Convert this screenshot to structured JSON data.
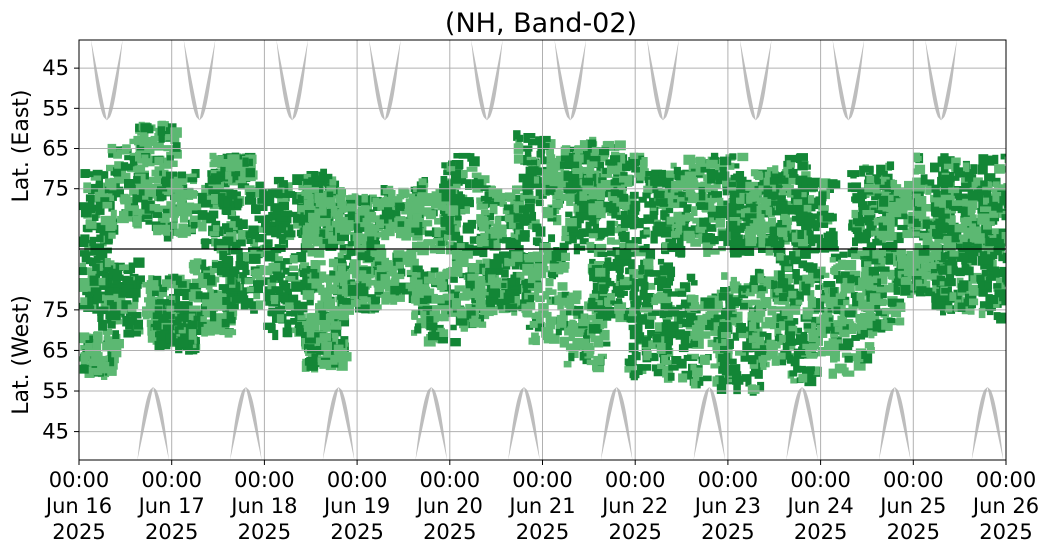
{
  "chart_data": {
    "type": "heatmap",
    "title": "(NH, Band-02)",
    "ylabel_top": "Lat. (East)",
    "ylabel_bottom": "Lat. (West)",
    "grid": true,
    "x_ticks": [
      {
        "time": "00:00",
        "date": "Jun 16",
        "year": "2025"
      },
      {
        "time": "00:00",
        "date": "Jun 17",
        "year": "2025"
      },
      {
        "time": "00:00",
        "date": "Jun 18",
        "year": "2025"
      },
      {
        "time": "00:00",
        "date": "Jun 19",
        "year": "2025"
      },
      {
        "time": "00:00",
        "date": "Jun 20",
        "year": "2025"
      },
      {
        "time": "00:00",
        "date": "Jun 21",
        "year": "2025"
      },
      {
        "time": "00:00",
        "date": "Jun 22",
        "year": "2025"
      },
      {
        "time": "00:00",
        "date": "Jun 23",
        "year": "2025"
      },
      {
        "time": "00:00",
        "date": "Jun 24",
        "year": "2025"
      },
      {
        "time": "00:00",
        "date": "Jun 25",
        "year": "2025"
      },
      {
        "time": "00:00",
        "date": "Jun 26",
        "year": "2025"
      }
    ],
    "xlim": [
      "2025-06-16 00:00",
      "2025-06-26 00:00"
    ],
    "y_top": {
      "ticks": [
        45,
        55,
        65,
        75
      ],
      "range": [
        38,
        90
      ],
      "direction": "increasing-downward"
    },
    "y_bottom": {
      "ticks": [
        75,
        65,
        55,
        45
      ],
      "range": [
        90,
        38
      ],
      "direction": "decreasing-downward"
    },
    "colors": {
      "strong": "#138636",
      "medium": "#5cb872",
      "night_mask": "#bdbdbd",
      "divider": "#000000",
      "grid": "#b0b0b0"
    },
    "night_mask_top": {
      "center_days": [
        0.3,
        1.3,
        2.3,
        3.3,
        4.4,
        5.3,
        6.3,
        7.3,
        8.3,
        9.3
      ],
      "tip_lat": 58,
      "half_width_days_at_38": 0.17
    },
    "night_mask_bottom": {
      "center_days": [
        0.8,
        1.8,
        2.8,
        3.8,
        4.8,
        5.8,
        6.8,
        7.8,
        8.8,
        9.8
      ],
      "tip_lat": 56,
      "half_width_days_at_38": 0.17
    },
    "activity_top": [
      {
        "day": 0.1,
        "lat_min": 70,
        "lat_max": 90,
        "level": "strong"
      },
      {
        "day": 0.5,
        "lat_min": 62,
        "lat_max": 84,
        "level": "medium"
      },
      {
        "day": 0.8,
        "lat_min": 58,
        "lat_max": 80,
        "level": "medium"
      },
      {
        "day": 1.0,
        "lat_min": 70,
        "lat_max": 86,
        "level": "medium"
      },
      {
        "day": 1.5,
        "lat_min": 72,
        "lat_max": 90,
        "level": "strong"
      },
      {
        "day": 1.6,
        "lat_min": 66,
        "lat_max": 72,
        "level": "medium"
      },
      {
        "day": 2.0,
        "lat_min": 72,
        "lat_max": 90,
        "level": "strong"
      },
      {
        "day": 2.5,
        "lat_min": 70,
        "lat_max": 86,
        "level": "strong"
      },
      {
        "day": 2.6,
        "lat_min": 74,
        "lat_max": 90,
        "level": "medium"
      },
      {
        "day": 3.0,
        "lat_min": 76,
        "lat_max": 90,
        "level": "medium"
      },
      {
        "day": 3.4,
        "lat_min": 74,
        "lat_max": 86,
        "level": "medium"
      },
      {
        "day": 3.8,
        "lat_min": 72,
        "lat_max": 90,
        "level": "medium"
      },
      {
        "day": 4.1,
        "lat_min": 66,
        "lat_max": 90,
        "level": "strong"
      },
      {
        "day": 4.5,
        "lat_min": 74,
        "lat_max": 88,
        "level": "medium"
      },
      {
        "day": 4.9,
        "lat_min": 60,
        "lat_max": 90,
        "level": "strong"
      },
      {
        "day": 5.2,
        "lat_min": 64,
        "lat_max": 80,
        "level": "medium"
      },
      {
        "day": 5.4,
        "lat_min": 66,
        "lat_max": 90,
        "level": "strong"
      },
      {
        "day": 5.6,
        "lat_min": 62,
        "lat_max": 80,
        "level": "medium"
      },
      {
        "day": 5.9,
        "lat_min": 66,
        "lat_max": 90,
        "level": "strong"
      },
      {
        "day": 6.3,
        "lat_min": 70,
        "lat_max": 90,
        "level": "strong"
      },
      {
        "day": 6.6,
        "lat_min": 66,
        "lat_max": 88,
        "level": "medium"
      },
      {
        "day": 6.9,
        "lat_min": 66,
        "lat_max": 90,
        "level": "strong"
      },
      {
        "day": 7.2,
        "lat_min": 72,
        "lat_max": 90,
        "level": "strong"
      },
      {
        "day": 7.4,
        "lat_min": 70,
        "lat_max": 88,
        "level": "medium"
      },
      {
        "day": 7.6,
        "lat_min": 66,
        "lat_max": 90,
        "level": "strong"
      },
      {
        "day": 7.9,
        "lat_min": 72,
        "lat_max": 90,
        "level": "strong"
      },
      {
        "day": 8.5,
        "lat_min": 68,
        "lat_max": 90,
        "level": "strong"
      },
      {
        "day": 8.8,
        "lat_min": 72,
        "lat_max": 86,
        "level": "medium"
      },
      {
        "day": 9.2,
        "lat_min": 66,
        "lat_max": 90,
        "level": "medium"
      },
      {
        "day": 9.4,
        "lat_min": 68,
        "lat_max": 90,
        "level": "strong"
      },
      {
        "day": 9.7,
        "lat_min": 72,
        "lat_max": 90,
        "level": "medium"
      },
      {
        "day": 9.9,
        "lat_min": 66,
        "lat_max": 90,
        "level": "strong"
      }
    ],
    "activity_bottom": [
      {
        "day": 0.1,
        "lat_min": 76,
        "lat_max": 90,
        "level": "strong"
      },
      {
        "day": 0.4,
        "lat_min": 70,
        "lat_max": 88,
        "level": "strong"
      },
      {
        "day": 0.15,
        "lat_min": 60,
        "lat_max": 70,
        "level": "medium"
      },
      {
        "day": 0.9,
        "lat_min": 68,
        "lat_max": 84,
        "level": "medium"
      },
      {
        "day": 1.0,
        "lat_min": 66,
        "lat_max": 78,
        "level": "strong"
      },
      {
        "day": 1.4,
        "lat_min": 70,
        "lat_max": 88,
        "level": "medium"
      },
      {
        "day": 1.7,
        "lat_min": 76,
        "lat_max": 90,
        "level": "strong"
      },
      {
        "day": 2.2,
        "lat_min": 70,
        "lat_max": 90,
        "level": "strong"
      },
      {
        "day": 2.6,
        "lat_min": 68,
        "lat_max": 88,
        "level": "medium"
      },
      {
        "day": 2.6,
        "lat_min": 62,
        "lat_max": 70,
        "level": "medium"
      },
      {
        "day": 3.0,
        "lat_min": 76,
        "lat_max": 90,
        "level": "medium"
      },
      {
        "day": 3.4,
        "lat_min": 78,
        "lat_max": 90,
        "level": "medium"
      },
      {
        "day": 3.8,
        "lat_min": 68,
        "lat_max": 86,
        "level": "medium"
      },
      {
        "day": 4.2,
        "lat_min": 72,
        "lat_max": 90,
        "level": "medium"
      },
      {
        "day": 4.6,
        "lat_min": 76,
        "lat_max": 90,
        "level": "strong"
      },
      {
        "day": 5.0,
        "lat_min": 68,
        "lat_max": 90,
        "level": "medium"
      },
      {
        "day": 5.4,
        "lat_min": 62,
        "lat_max": 80,
        "level": "medium"
      },
      {
        "day": 5.7,
        "lat_min": 74,
        "lat_max": 90,
        "level": "strong"
      },
      {
        "day": 6.1,
        "lat_min": 60,
        "lat_max": 88,
        "level": "strong"
      },
      {
        "day": 6.4,
        "lat_min": 58,
        "lat_max": 84,
        "level": "strong"
      },
      {
        "day": 6.8,
        "lat_min": 58,
        "lat_max": 80,
        "level": "medium"
      },
      {
        "day": 7.1,
        "lat_min": 56,
        "lat_max": 86,
        "level": "strong"
      },
      {
        "day": 7.4,
        "lat_min": 62,
        "lat_max": 84,
        "level": "medium"
      },
      {
        "day": 7.7,
        "lat_min": 58,
        "lat_max": 90,
        "level": "strong"
      },
      {
        "day": 8.0,
        "lat_min": 64,
        "lat_max": 86,
        "level": "medium"
      },
      {
        "day": 8.3,
        "lat_min": 60,
        "lat_max": 90,
        "level": "medium"
      },
      {
        "day": 8.6,
        "lat_min": 70,
        "lat_max": 90,
        "level": "medium"
      },
      {
        "day": 9.0,
        "lat_min": 80,
        "lat_max": 90,
        "level": "medium"
      },
      {
        "day": 9.4,
        "lat_min": 76,
        "lat_max": 90,
        "level": "strong"
      },
      {
        "day": 9.9,
        "lat_min": 74,
        "lat_max": 90,
        "level": "strong"
      }
    ]
  }
}
